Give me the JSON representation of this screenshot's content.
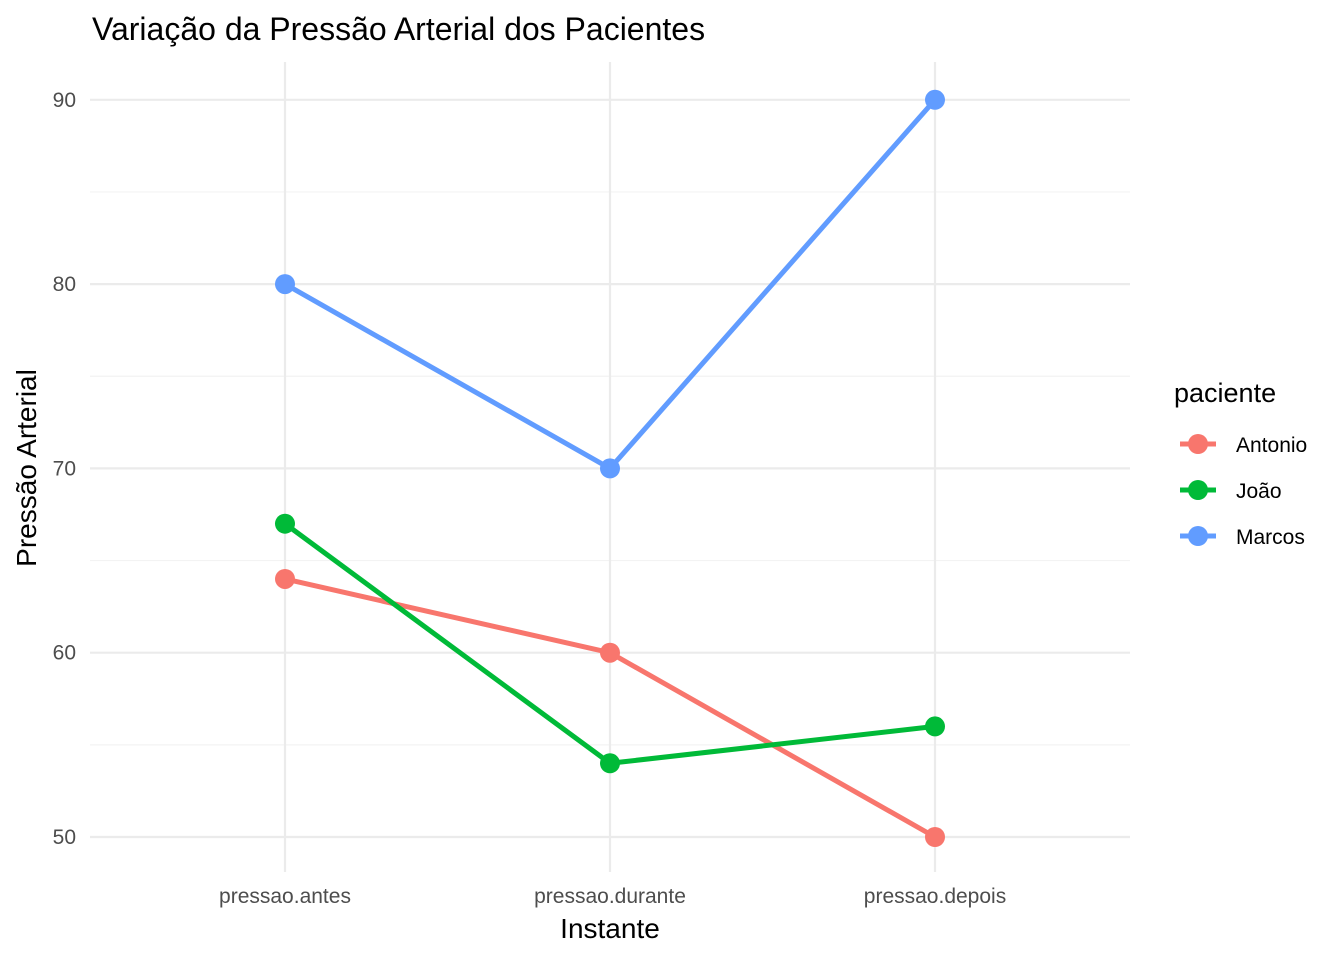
{
  "chart_data": {
    "type": "line",
    "title": "Variação da Pressão Arterial dos Pacientes",
    "xlabel": "Instante",
    "ylabel": "Pressão Arterial",
    "categories": [
      "pressao.antes",
      "pressao.durante",
      "pressao.depois"
    ],
    "yticks": [
      50,
      60,
      70,
      80,
      90
    ],
    "ylim": [
      48,
      92
    ],
    "grid": true,
    "legend": {
      "title": "paciente",
      "placement": "right"
    },
    "series": [
      {
        "name": "Antonio",
        "color": "#F8766D",
        "values": [
          64,
          60,
          50
        ]
      },
      {
        "name": "João",
        "color": "#00BA38",
        "values": [
          67,
          54,
          56
        ]
      },
      {
        "name": "Marcos",
        "color": "#619CFF",
        "values": [
          80,
          70,
          90
        ]
      }
    ]
  }
}
